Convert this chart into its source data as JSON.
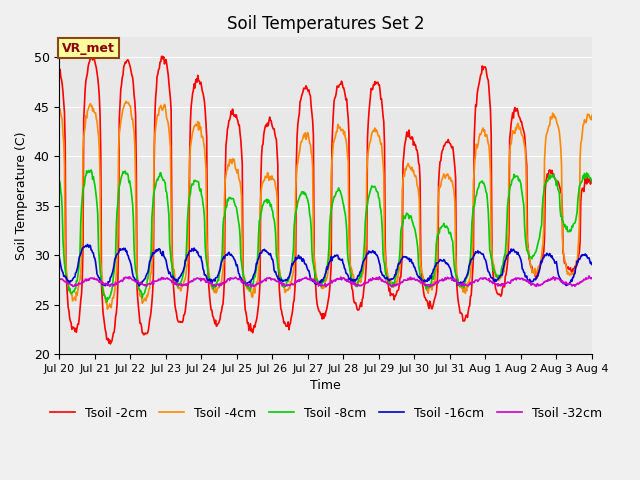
{
  "title": "Soil Temperatures Set 2",
  "xlabel": "Time",
  "ylabel": "Soil Temperature (C)",
  "ylim": [
    20,
    52
  ],
  "yticks": [
    20,
    25,
    30,
    35,
    40,
    45,
    50
  ],
  "fig_bg": "#f0f0f0",
  "plot_bg": "#e8e8e8",
  "annotation_text": "VR_met",
  "series": [
    {
      "label": "Tsoil -2cm",
      "color": "#ff0000",
      "lw": 1.2
    },
    {
      "label": "Tsoil -4cm",
      "color": "#ff8800",
      "lw": 1.2
    },
    {
      "label": "Tsoil -8cm",
      "color": "#00cc00",
      "lw": 1.2
    },
    {
      "label": "Tsoil -16cm",
      "color": "#0000cc",
      "lw": 1.2
    },
    {
      "label": "Tsoil -32cm",
      "color": "#cc00cc",
      "lw": 1.2
    }
  ],
  "xtick_labels": [
    "Jul 20",
    "Jul 21",
    "Jul 22",
    "Jul 23",
    "Jul 24",
    "Jul 25",
    "Jul 26",
    "Jul 27",
    "Jul 28",
    "Jul 29",
    "Jul 30",
    "Jul 31",
    "Aug 1",
    "Aug 2",
    "Aug 3",
    "Aug 4"
  ],
  "n_days": 15,
  "pts_per_day": 48,
  "title_fontsize": 12,
  "axis_fontsize": 9,
  "legend_fontsize": 9,
  "peak2cm": [
    49.2,
    50.0,
    49.5,
    50.0,
    47.5,
    44.0,
    43.5,
    47.2,
    47.5,
    47.5,
    41.5,
    41.5,
    49.5,
    44.0,
    37.5
  ],
  "trough2cm": [
    23.0,
    21.5,
    21.0,
    23.0,
    23.5,
    22.5,
    22.5,
    23.5,
    24.0,
    25.5,
    26.0,
    23.0,
    24.5,
    28.0,
    28.5
  ],
  "peak4cm": [
    45.5,
    45.0,
    45.5,
    45.0,
    43.0,
    39.0,
    38.0,
    42.5,
    43.0,
    42.5,
    38.5,
    38.0,
    43.0,
    43.0,
    44.0
  ],
  "trough4cm": [
    26.0,
    25.0,
    24.5,
    26.5,
    26.5,
    26.0,
    26.5,
    26.5,
    27.0,
    27.0,
    27.0,
    26.0,
    27.0,
    28.5,
    28.0
  ],
  "peak8cm": [
    39.0,
    38.5,
    38.5,
    38.0,
    37.5,
    35.5,
    35.5,
    36.5,
    36.5,
    37.0,
    33.5,
    33.0,
    38.0,
    38.0,
    38.0
  ],
  "trough8cm": [
    26.5,
    25.5,
    25.5,
    27.0,
    27.0,
    26.5,
    27.0,
    27.0,
    27.0,
    27.0,
    27.0,
    26.5,
    27.5,
    28.5,
    32.5
  ],
  "peak16cm": [
    31.0,
    31.0,
    30.5,
    30.5,
    30.5,
    30.0,
    30.5,
    29.5,
    30.0,
    30.5,
    29.5,
    29.5,
    30.5,
    30.5,
    30.0
  ],
  "trough16cm": [
    27.5,
    27.0,
    27.0,
    27.5,
    27.5,
    27.0,
    27.5,
    27.0,
    27.5,
    27.5,
    27.5,
    27.0,
    27.5,
    27.5,
    27.0
  ],
  "mean32cm": 27.3,
  "amp32cm": 0.35,
  "phase32cm": 2.0
}
